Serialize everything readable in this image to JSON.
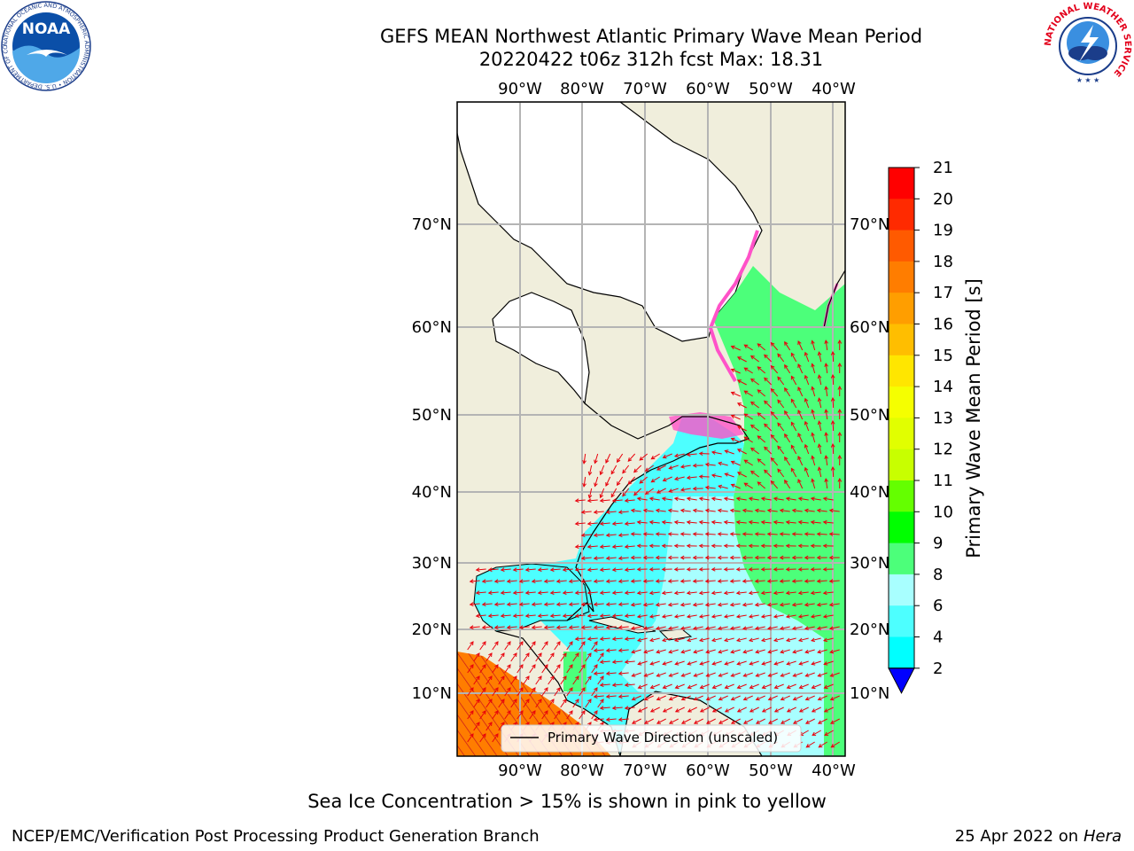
{
  "header": {
    "title_line1": "GEFS MEAN Northwest Atlantic Primary Wave Mean Period",
    "title_line2": "20220422 t06z 312h fcst   Max: 18.31"
  },
  "map": {
    "lon_labels": [
      "90°W",
      "80°W",
      "70°W",
      "60°W",
      "50°W",
      "40°W"
    ],
    "lat_labels": [
      "70°N",
      "60°N",
      "50°N",
      "40°N",
      "30°N",
      "20°N",
      "10°N"
    ],
    "legend_label": "Primary Wave Direction (unscaled)",
    "colors": {
      "land": "#f0eedc",
      "ice": "#ffffff",
      "grid": "#b4b4b4",
      "arrow": "#e8000b"
    }
  },
  "colorbar": {
    "label": "Primary Wave Mean Period [s]",
    "ticks": [
      "21",
      "20",
      "19",
      "18",
      "17",
      "16",
      "15",
      "14",
      "13",
      "12",
      "11",
      "10",
      "9",
      "8",
      "6",
      "4",
      "2"
    ],
    "colors": [
      "#ff0000",
      "#ff2a00",
      "#ff5a00",
      "#ff7d00",
      "#ff9e00",
      "#ffbe00",
      "#ffe600",
      "#f5ff00",
      "#e1ff00",
      "#c8ff00",
      "#64ff00",
      "#00ff00",
      "#4cff7a",
      "#a8ffff",
      "#4dffff",
      "#00ffff",
      "#0f6fff",
      "#0000ff"
    ]
  },
  "footer": {
    "caption": "Sea Ice Concentration > 15% is shown in pink to yellow",
    "branch": "NCEP/EMC/Verification Post Processing Product Generation Branch",
    "date": "25 Apr 2022 on",
    "machine": "Hera"
  },
  "logos": {
    "noaa_text": "NOAA",
    "noaa_ring": "NATIONAL OCEANIC AND ATMOSPHERIC ADMINISTRATION • U.S. DEPARTMENT OF COMMERCE",
    "nws_ring": "NATIONAL WEATHER SERVICE"
  }
}
